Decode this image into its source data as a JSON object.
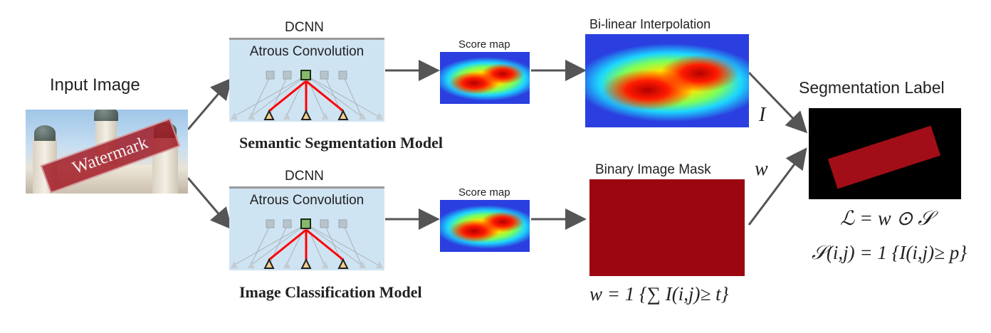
{
  "input": {
    "title": "Input Image",
    "watermark_text": "Watermark"
  },
  "top_branch": {
    "dcnn_label": "DCNN",
    "box_title": "Atrous Convolution",
    "model_label": "Semantic Segmentation Model",
    "score_map_label": "Score map",
    "interp_label": "Bi-linear Interpolation",
    "edge_symbol": "I"
  },
  "bottom_branch": {
    "dcnn_label": "DCNN",
    "box_title": "Atrous Convolution",
    "model_label": "Image Classification Model",
    "score_map_label": "Score map",
    "mask_label": "Binary Image Mask",
    "edge_symbol": "w",
    "mask_formula": "w = 1 {∑ I(i,j)≥ t}"
  },
  "output": {
    "title": "Segmentation Label",
    "formula_label": "ℒ = w ⊙ 𝒮",
    "formula_score": "𝒮(i,j) = 1 {I(i,j)≥ p}"
  },
  "colors": {
    "arrow": "#555555",
    "box_fill": "#cfe4f3",
    "mask_fill": "#9b0610",
    "label_bar": "#a10e17",
    "highlight_line": "#ff0000"
  }
}
